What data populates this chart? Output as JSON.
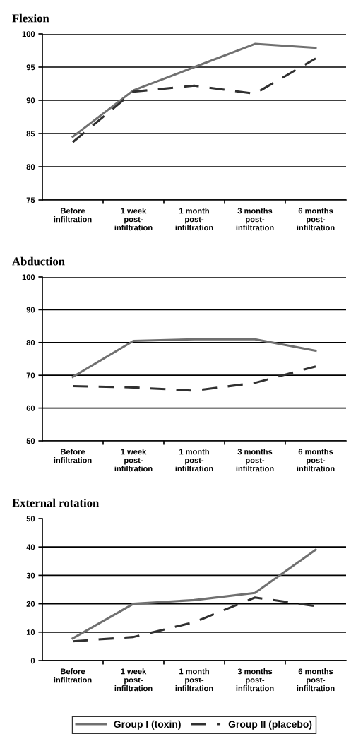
{
  "chart_data": [
    {
      "type": "line",
      "title": "Flexion",
      "categories": [
        "Before infiltration",
        "1 week post-infiltration",
        "1 month post-infiltration",
        "3 months post-infiltration",
        "6 months post-infiltration"
      ],
      "ylim": [
        75,
        100
      ],
      "yticks": [
        75,
        80,
        85,
        90,
        95,
        100
      ],
      "grid": "y",
      "series": [
        {
          "color": "#707070",
          "line_style": "solid",
          "values": [
            84.5,
            91.5,
            95,
            98.5,
            97.9
          ]
        },
        {
          "color": "#303030",
          "line_style": "dashed",
          "values": [
            83.7,
            91.3,
            92.2,
            91,
            96.3
          ]
        }
      ]
    },
    {
      "type": "line",
      "title": "Abduction",
      "categories": [
        "Before infiltration",
        "1 week post-infiltration",
        "1 month post-infiltration",
        "3 months post-infiltration",
        "6 months post-infiltration"
      ],
      "ylim": [
        50,
        100
      ],
      "yticks": [
        50,
        60,
        70,
        80,
        90,
        100
      ],
      "grid": "y",
      "series": [
        {
          "color": "#707070",
          "line_style": "solid",
          "values": [
            69.5,
            80.5,
            81,
            81,
            77.5
          ]
        },
        {
          "color": "#303030",
          "line_style": "dashed",
          "values": [
            66.7,
            66.3,
            65.3,
            67.7,
            72.7
          ]
        }
      ]
    },
    {
      "type": "line",
      "title": "External rotation",
      "categories": [
        "Before infiltration",
        "1 week post-infiltration",
        "1 month post-infiltration",
        "3 months post-infiltration",
        "6 months post-infiltration"
      ],
      "ylim": [
        0,
        50
      ],
      "yticks": [
        0,
        10,
        20,
        30,
        40,
        50
      ],
      "grid": "y",
      "legend": "bottom",
      "series": [
        {
          "name": "Group I (toxin)",
          "color": "#707070",
          "line_style": "solid",
          "values": [
            7.8,
            20,
            21.3,
            23.8,
            39
          ]
        },
        {
          "name": "Group II (placebo)",
          "color": "#303030",
          "line_style": "dashed",
          "values": [
            6.8,
            8.3,
            13.5,
            22.2,
            19.2
          ]
        }
      ]
    }
  ]
}
